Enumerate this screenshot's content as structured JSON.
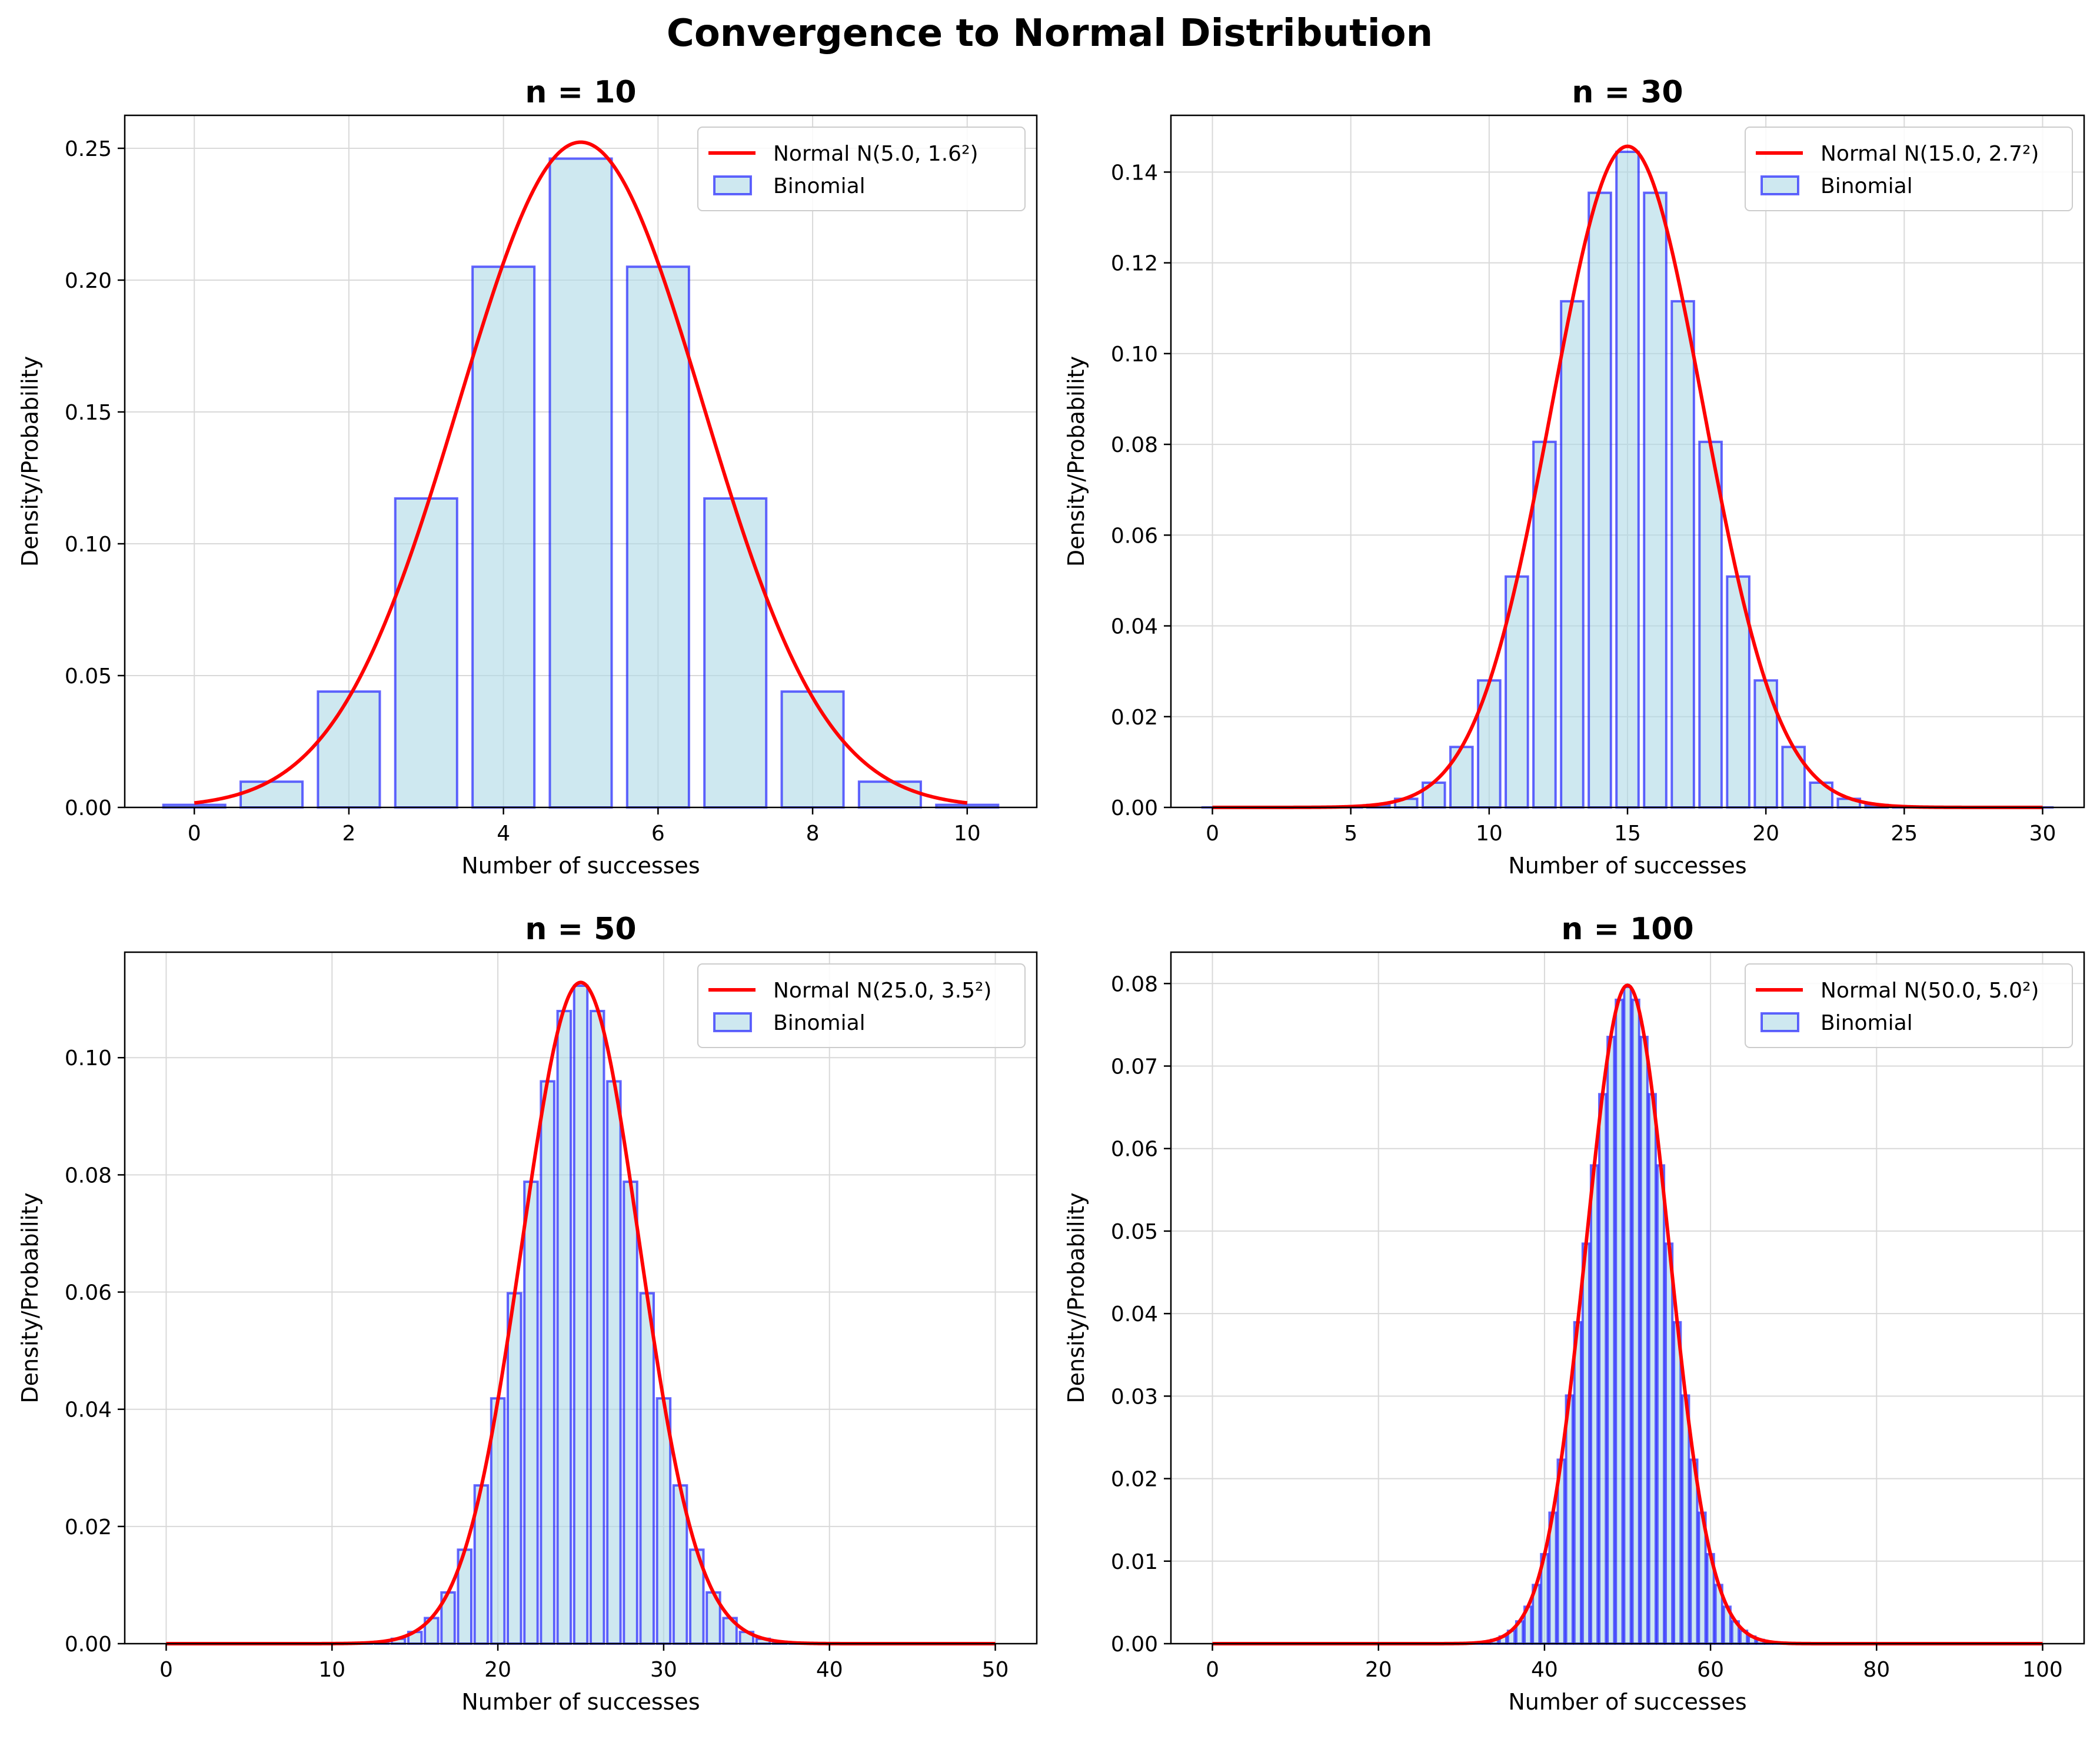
{
  "figure_title": "Convergence to Normal Distribution",
  "colors": {
    "curve": "#ff0000",
    "bar_fill": "#add8e6",
    "bar_edge": "#0000ff",
    "grid": "#d9d9d9",
    "axis": "#000000"
  },
  "chart_data": [
    {
      "type": "bar",
      "title": "n = 10",
      "xlabel": "Number of successes",
      "ylabel": "Density/Probability",
      "xlim": [
        -0.9,
        10.9
      ],
      "ylim": [
        0,
        0.2625
      ],
      "xticks": [
        0,
        2,
        4,
        6,
        8,
        10
      ],
      "xtick_labels": [
        "0",
        "2",
        "4",
        "6",
        "8",
        "10"
      ],
      "yticks": [
        0,
        0.05,
        0.1,
        0.15,
        0.2,
        0.25
      ],
      "ytick_labels": [
        "0.00",
        "0.05",
        "0.10",
        "0.15",
        "0.20",
        "0.25"
      ],
      "binomial": {
        "n": 10,
        "p": 0.5
      },
      "normal": {
        "mean": 5.0,
        "sd": 1.5811,
        "x_range": [
          0,
          10
        ]
      },
      "legend": [
        "Normal N(5.0, 1.6²)",
        "Binomial"
      ],
      "legend_position": "top-right"
    },
    {
      "type": "bar",
      "title": "n = 30",
      "xlabel": "Number of successes",
      "ylabel": "Density/Probability",
      "xlim": [
        -1.5,
        31.5
      ],
      "ylim": [
        0,
        0.1525
      ],
      "xticks": [
        0,
        5,
        10,
        15,
        20,
        25,
        30
      ],
      "xtick_labels": [
        "0",
        "5",
        "10",
        "15",
        "20",
        "25",
        "30"
      ],
      "yticks": [
        0,
        0.02,
        0.04,
        0.06,
        0.08,
        0.1,
        0.12,
        0.14
      ],
      "ytick_labels": [
        "0.00",
        "0.02",
        "0.04",
        "0.06",
        "0.08",
        "0.10",
        "0.12",
        "0.14"
      ],
      "binomial": {
        "n": 30,
        "p": 0.5
      },
      "normal": {
        "mean": 15.0,
        "sd": 2.7386,
        "x_range": [
          0,
          30
        ]
      },
      "legend": [
        "Normal N(15.0, 2.7²)",
        "Binomial"
      ],
      "legend_position": "top-right"
    },
    {
      "type": "bar",
      "title": "n = 50",
      "xlabel": "Number of successes",
      "ylabel": "Density/Probability",
      "xlim": [
        -2.5,
        52.5
      ],
      "ylim": [
        0,
        0.118
      ],
      "xticks": [
        0,
        10,
        20,
        30,
        40,
        50
      ],
      "xtick_labels": [
        "0",
        "10",
        "20",
        "30",
        "40",
        "50"
      ],
      "yticks": [
        0,
        0.02,
        0.04,
        0.06,
        0.08,
        0.1
      ],
      "ytick_labels": [
        "0.00",
        "0.02",
        "0.04",
        "0.06",
        "0.08",
        "0.10"
      ],
      "binomial": {
        "n": 50,
        "p": 0.5
      },
      "normal": {
        "mean": 25.0,
        "sd": 3.5355,
        "x_range": [
          0,
          50
        ]
      },
      "legend": [
        "Normal N(25.0, 3.5²)",
        "Binomial"
      ],
      "legend_position": "top-right"
    },
    {
      "type": "bar",
      "title": "n = 100",
      "xlabel": "Number of successes",
      "ylabel": "Density/Probability",
      "xlim": [
        -5,
        105
      ],
      "ylim": [
        0,
        0.0838
      ],
      "xticks": [
        0,
        20,
        40,
        60,
        80,
        100
      ],
      "xtick_labels": [
        "0",
        "20",
        "40",
        "60",
        "80",
        "100"
      ],
      "yticks": [
        0,
        0.01,
        0.02,
        0.03,
        0.04,
        0.05,
        0.06,
        0.07,
        0.08
      ],
      "ytick_labels": [
        "0.00",
        "0.01",
        "0.02",
        "0.03",
        "0.04",
        "0.05",
        "0.06",
        "0.07",
        "0.08"
      ],
      "binomial": {
        "n": 100,
        "p": 0.5
      },
      "normal": {
        "mean": 50.0,
        "sd": 5.0,
        "x_range": [
          0,
          100
        ]
      },
      "legend": [
        "Normal N(50.0, 5.0²)",
        "Binomial"
      ],
      "legend_position": "top-right"
    }
  ]
}
